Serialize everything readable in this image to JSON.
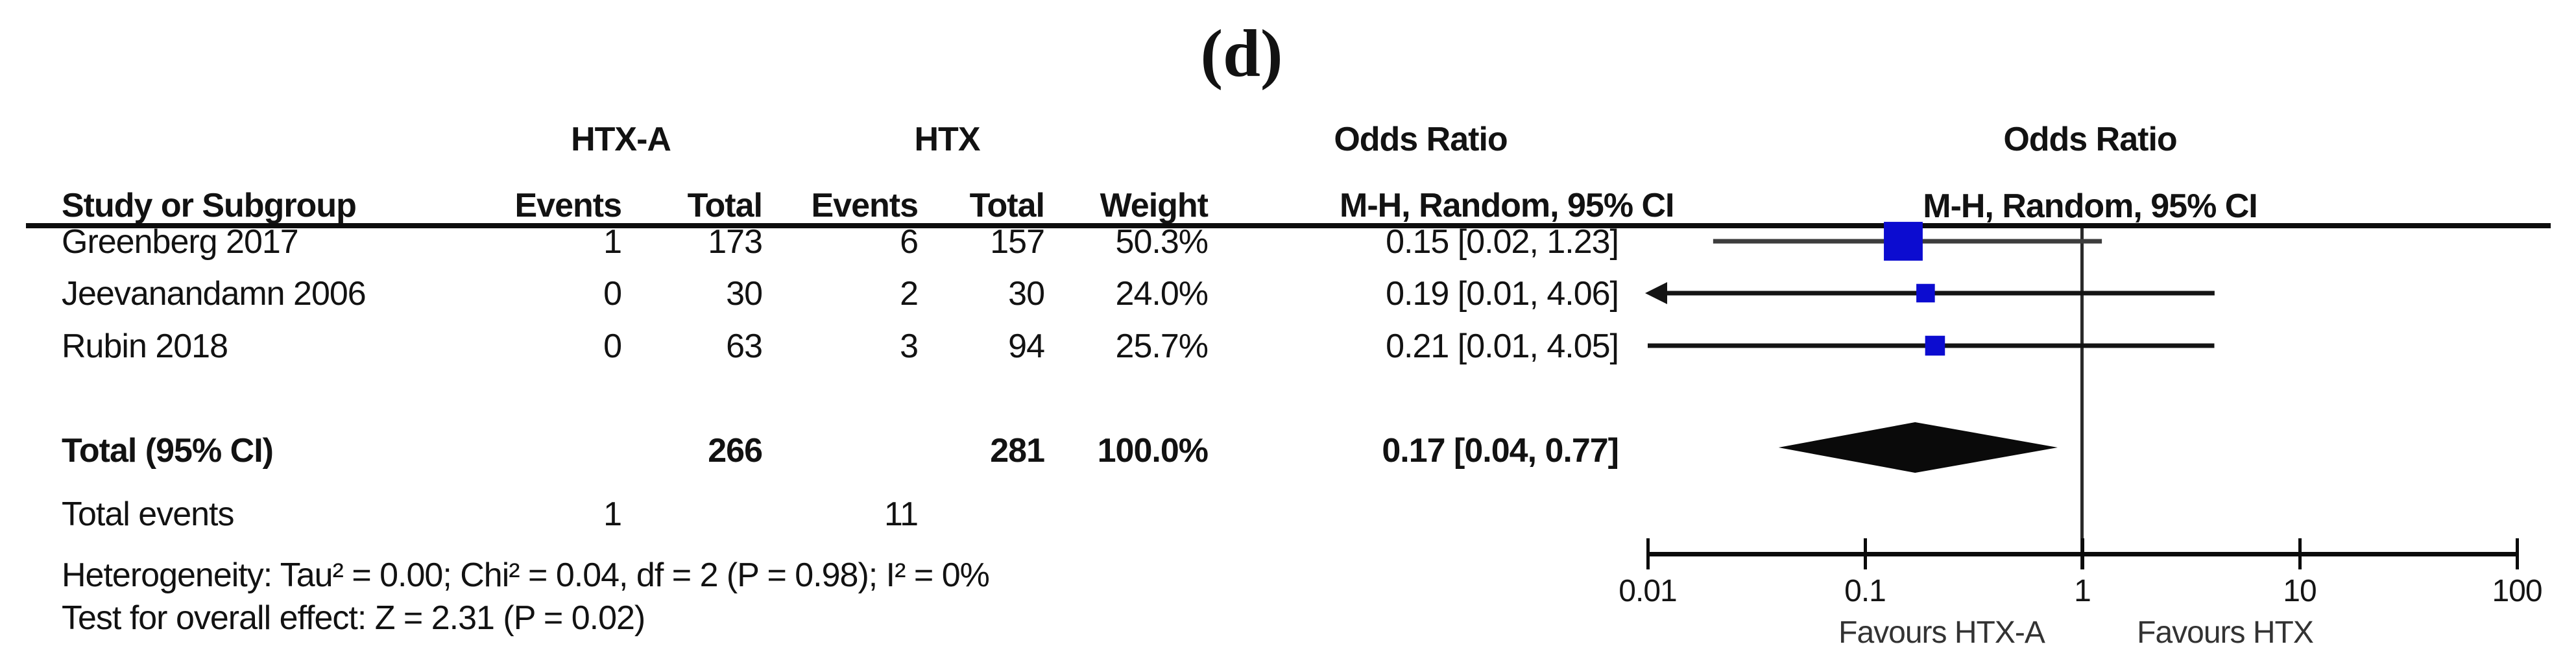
{
  "panel_label": "(d)",
  "header": {
    "group_treatment": "HTX-A",
    "group_control": "HTX",
    "study_col": "Study or Subgroup",
    "events_col": "Events",
    "total_col": "Total",
    "weight_col": "Weight",
    "or_title": "Odds Ratio",
    "or_subtitle": "M-H, Random, 95% CI"
  },
  "chart_data": {
    "type": "forest",
    "effect_measure": "Odds Ratio",
    "method": "M-H, Random, 95% CI",
    "x_scale": "log",
    "x_ticks": [
      "0.01",
      "0.1",
      "1",
      "10",
      "100"
    ],
    "x_tick_values": [
      0.01,
      0.1,
      1,
      10,
      100
    ],
    "marker_color": "#0c0cd0",
    "studies": [
      {
        "name": "Greenberg 2017",
        "events_treatment": "1",
        "total_treatment": "173",
        "events_control": "6",
        "total_control": "157",
        "weight": "50.3%",
        "or_text": "0.15 [0.02, 1.23]",
        "or": 0.15,
        "ci_low": 0.02,
        "ci_high": 1.23,
        "arrow_low": false,
        "line_color": "#3d3d3d"
      },
      {
        "name": "Jeevanandamn 2006",
        "events_treatment": "0",
        "total_treatment": "30",
        "events_control": "2",
        "total_control": "30",
        "weight": "24.0%",
        "or_text": "0.19 [0.01, 4.06]",
        "or": 0.19,
        "ci_low": 0.01,
        "ci_high": 4.06,
        "arrow_low": true,
        "line_color": "#141414"
      },
      {
        "name": "Rubin 2018",
        "events_treatment": "0",
        "total_treatment": "63",
        "events_control": "3",
        "total_control": "94",
        "weight": "25.7%",
        "or_text": "0.21 [0.01, 4.05]",
        "or": 0.21,
        "ci_low": 0.01,
        "ci_high": 4.05,
        "arrow_low": false,
        "line_color": "#141414"
      }
    ],
    "total": {
      "label": "Total (95% CI)",
      "total_treatment": "266",
      "total_control": "281",
      "weight": "100.0%",
      "or_text": "0.17 [0.04, 0.77]",
      "or": 0.17,
      "ci_low": 0.04,
      "ci_high": 0.77
    },
    "total_events": {
      "label": "Total events",
      "events_treatment": "1",
      "events_control": "11"
    },
    "footnotes": {
      "heterogeneity": "Heterogeneity: Tau² = 0.00; Chi² = 0.04, df = 2 (P = 0.98); I² = 0%",
      "overall_effect": "Test for overall effect: Z = 2.31 (P = 0.02)"
    },
    "favours_left": "Favours HTX-A",
    "favours_right": "Favours HTX"
  }
}
